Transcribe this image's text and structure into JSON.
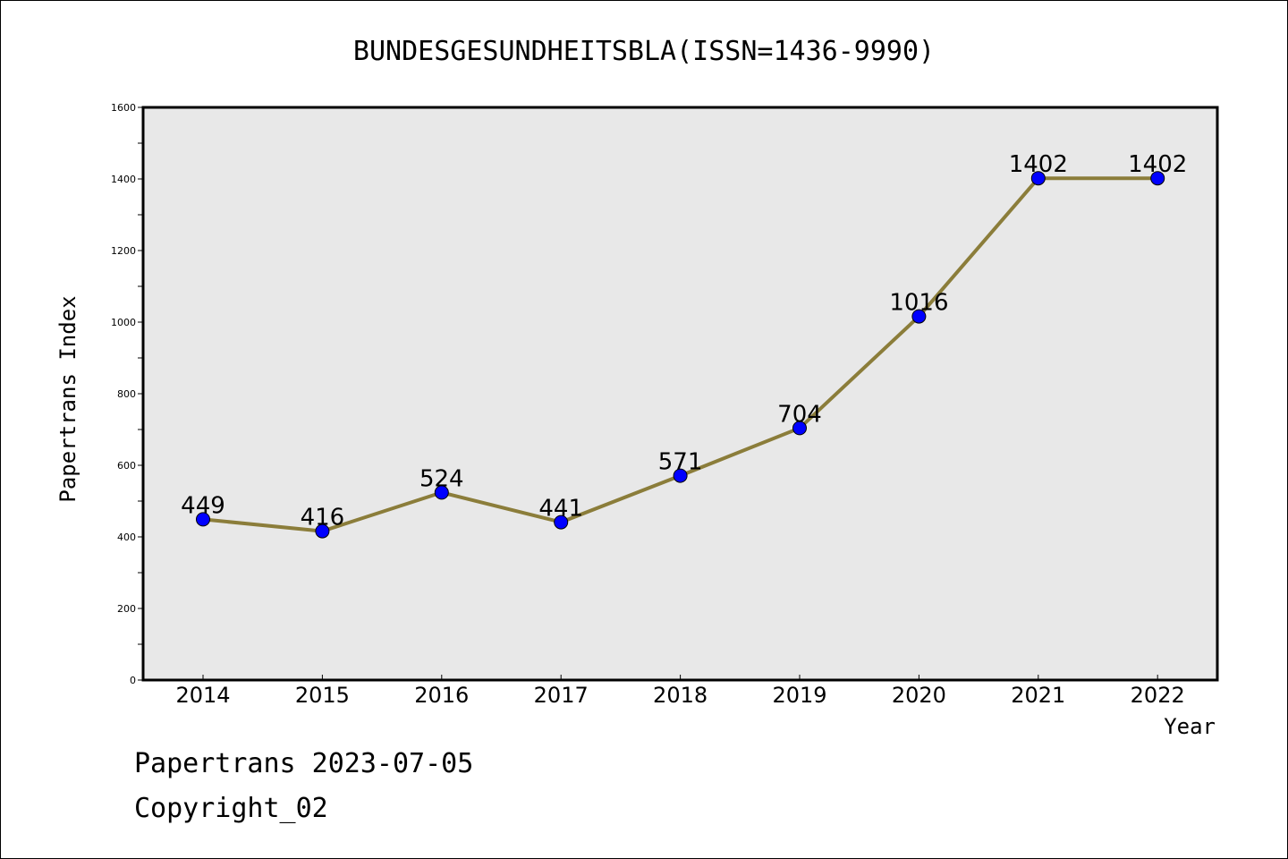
{
  "chart_data": {
    "type": "line",
    "title": "BUNDESGESUNDHEITSBLA(ISSN=1436-9990)",
    "xlabel": "Year",
    "ylabel": "Papertrans Index",
    "categories": [
      "2014",
      "2015",
      "2016",
      "2017",
      "2018",
      "2019",
      "2020",
      "2021",
      "2022"
    ],
    "values": [
      449,
      416,
      524,
      441,
      571,
      704,
      1016,
      1402,
      1402
    ],
    "ylim": [
      0,
      1600
    ],
    "yticks": [
      0,
      200,
      400,
      600,
      800,
      1000,
      1200,
      1400,
      1600
    ],
    "grid": false,
    "colors": {
      "line": "#8B7D3A",
      "marker": "#0000FF",
      "plot_bg": "#E8E8E8"
    }
  },
  "footer": {
    "date_line": "Papertrans 2023-07-05",
    "copyright": "Copyright_02"
  }
}
